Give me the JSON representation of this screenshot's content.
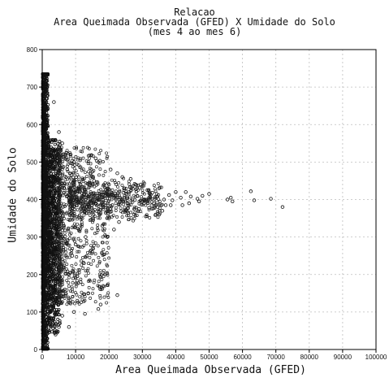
{
  "chart_data": {
    "type": "scatter",
    "title": [
      "Relacao",
      "Area Queimada Observada (GFED) X Umidade do Solo",
      "(mes 4 ao mes 6)"
    ],
    "xlabel": "Area Queimada Observada (GFED)",
    "ylabel": "Umidade do Solo",
    "xlim": [
      0,
      100000
    ],
    "ylim": [
      0,
      800
    ],
    "xticks": [
      0,
      10000,
      20000,
      30000,
      40000,
      50000,
      60000,
      70000,
      80000,
      90000,
      100000
    ],
    "yticks": [
      0,
      100,
      200,
      300,
      400,
      500,
      600,
      700,
      800
    ],
    "grid": true,
    "marker": "hollow-circle",
    "series": [
      {
        "points": [
          [
            43000,
            420
          ],
          [
            44500,
            408
          ],
          [
            46500,
            402
          ],
          [
            48000,
            410
          ],
          [
            47000,
            395
          ],
          [
            55500,
            400
          ],
          [
            56500,
            405
          ],
          [
            57000,
            395
          ],
          [
            62500,
            422
          ],
          [
            63500,
            398
          ],
          [
            68500,
            402
          ],
          [
            72000,
            380
          ],
          [
            50000,
            415
          ],
          [
            40000,
            420
          ],
          [
            41500,
            405
          ],
          [
            38000,
            412
          ],
          [
            36500,
            400
          ],
          [
            42000,
            385
          ],
          [
            39000,
            398
          ],
          [
            35000,
            430
          ],
          [
            37000,
            385
          ],
          [
            33000,
            418
          ],
          [
            34500,
            408
          ],
          [
            31500,
            425
          ],
          [
            30000,
            395
          ],
          [
            32000,
            378
          ],
          [
            28500,
            410
          ],
          [
            27000,
            400
          ],
          [
            29500,
            440
          ],
          [
            26000,
            420
          ],
          [
            25000,
            372
          ],
          [
            23500,
            395
          ],
          [
            24500,
            430
          ],
          [
            22000,
            410
          ],
          [
            21000,
            385
          ],
          [
            20000,
            440
          ],
          [
            19000,
            365
          ],
          [
            18500,
            420
          ],
          [
            17000,
            400
          ],
          [
            16000,
            390
          ],
          [
            15500,
            450
          ],
          [
            14500,
            420
          ],
          [
            13500,
            380
          ],
          [
            12500,
            415
          ],
          [
            11500,
            440
          ],
          [
            10500,
            400
          ],
          [
            9500,
            425
          ],
          [
            8500,
            395
          ],
          [
            7500,
            410
          ],
          [
            6500,
            430
          ],
          [
            3500,
            660
          ],
          [
            17500,
            120
          ],
          [
            16800,
            108
          ],
          [
            22500,
            145
          ],
          [
            16000,
            510
          ],
          [
            14500,
            470
          ],
          [
            12000,
            350
          ],
          [
            13000,
            300
          ],
          [
            15000,
            260
          ],
          [
            11000,
            320
          ],
          [
            10000,
            280
          ],
          [
            12500,
            230
          ],
          [
            9000,
            250
          ],
          [
            8000,
            200
          ],
          [
            11500,
            180
          ],
          [
            10500,
            130
          ],
          [
            9500,
            100
          ],
          [
            13800,
            150
          ],
          [
            12800,
            95
          ],
          [
            7500,
            480
          ],
          [
            8500,
            520
          ],
          [
            9500,
            500
          ],
          [
            6000,
            550
          ],
          [
            5000,
            580
          ],
          [
            4500,
            520
          ],
          [
            7000,
            150
          ],
          [
            6000,
            90
          ],
          [
            5000,
            60
          ],
          [
            8000,
            60
          ],
          [
            4000,
            40
          ],
          [
            18000,
            330
          ],
          [
            20000,
            350
          ],
          [
            21500,
            320
          ],
          [
            19500,
            300
          ],
          [
            23000,
            340
          ],
          [
            24000,
            460
          ],
          [
            26500,
            455
          ],
          [
            28000,
            440
          ],
          [
            22500,
            470
          ],
          [
            20500,
            480
          ],
          [
            30500,
            390
          ],
          [
            33500,
            390
          ],
          [
            36000,
            370
          ],
          [
            38500,
            385
          ],
          [
            44000,
            390
          ],
          [
            25500,
            390
          ],
          [
            27500,
            360
          ],
          [
            29000,
            375
          ],
          [
            31000,
            355
          ],
          [
            34000,
            360
          ]
        ]
      }
    ]
  }
}
